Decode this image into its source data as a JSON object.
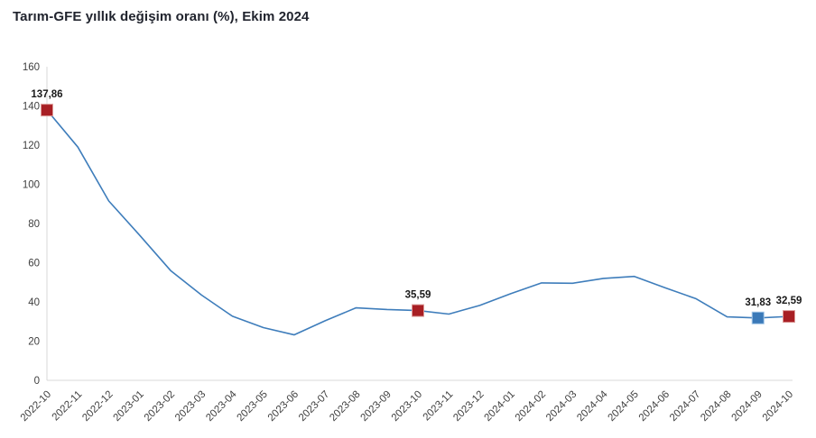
{
  "title": "Tarım-GFE yıllık değişim oranı (%), Ekim 2024",
  "chart_data": {
    "type": "line",
    "title": "Tarım-GFE yıllık değişim oranı (%), Ekim 2024",
    "x": [
      "2022-10",
      "2022-11",
      "2022-12",
      "2023-01",
      "2023-02",
      "2023-03",
      "2023-04",
      "2023-05",
      "2023-06",
      "2023-07",
      "2023-08",
      "2023-09",
      "2023-10",
      "2023-11",
      "2023-12",
      "2024-01",
      "2024-02",
      "2024-03",
      "2024-04",
      "2024-05",
      "2024-06",
      "2024-07",
      "2024-08",
      "2024-09",
      "2024-10"
    ],
    "series": [
      {
        "name": "Tarım-GFE yıllık değişim oranı (%)",
        "values": [
          137.86,
          119.0,
          91.5,
          74.0,
          56.0,
          43.5,
          32.7,
          26.9,
          23.2,
          30.4,
          37.0,
          36.1,
          35.59,
          33.8,
          38.2,
          44.2,
          49.7,
          49.5,
          52.0,
          53.0,
          47.2,
          41.6,
          32.4,
          31.83,
          32.59
        ]
      }
    ],
    "ylim": [
      0,
      160
    ],
    "yticks": [
      0,
      20,
      40,
      60,
      80,
      100,
      120,
      140,
      160
    ],
    "xlabel": "",
    "ylabel": "",
    "grid": false,
    "legend_position": "none",
    "line_color": "#3e7dbb",
    "axis_color": "#d9d9d9",
    "tick_label_color": "#3f3f3f",
    "label_color": "#1a1a1a",
    "annotations": [
      {
        "x": "2022-10",
        "label": "137,86",
        "marker_color": "#a81f24",
        "marker_border": "#dc9b99"
      },
      {
        "x": "2023-10",
        "label": "35,59",
        "marker_color": "#a81f24",
        "marker_border": "#dc9b99"
      },
      {
        "x": "2024-09",
        "label": "31,83",
        "marker_color": "#3a79b8",
        "marker_border": "#9cc2e5"
      },
      {
        "x": "2024-10",
        "label": "32,59",
        "marker_color": "#a81f24",
        "marker_border": "#dc9b99"
      }
    ]
  }
}
